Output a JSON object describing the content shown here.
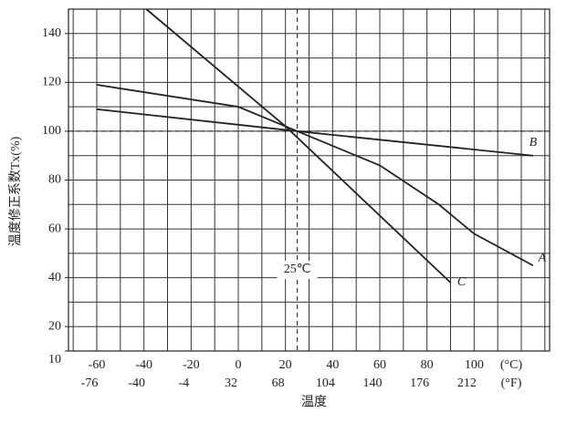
{
  "chart_data": {
    "type": "line",
    "x_label": "温度",
    "y_label": "温度修正系数Tx(%)",
    "annotation": "25℃",
    "reference_lines": {
      "x": 25,
      "y": 100
    },
    "xlim": [
      -72,
      132
    ],
    "ylim": [
      10,
      150
    ],
    "xticks": [
      -60,
      -40,
      -20,
      0,
      20,
      40,
      60,
      80,
      100
    ],
    "xticks_f": [
      -76,
      -40,
      -4,
      32,
      68,
      104,
      140,
      176,
      212
    ],
    "x_units": [
      "(°C)",
      "(°F)"
    ],
    "yticks": [
      10,
      20,
      40,
      60,
      80,
      100,
      120,
      140
    ],
    "xgrid": [
      -70,
      -60,
      -50,
      -40,
      -30,
      -20,
      -10,
      0,
      10,
      20,
      30,
      40,
      50,
      60,
      70,
      80,
      90,
      100,
      110,
      120,
      130
    ],
    "ygrid": [
      20,
      30,
      40,
      50,
      60,
      70,
      80,
      90,
      100,
      110,
      120,
      130,
      140
    ],
    "series": [
      {
        "name": "A",
        "color": "#222222",
        "x": [
          -60,
          0,
          25,
          60,
          85,
          100,
          125
        ],
        "values": [
          119,
          110,
          100,
          86,
          70,
          58,
          45
        ]
      },
      {
        "name": "B",
        "color": "#222222",
        "x": [
          -60,
          25,
          125
        ],
        "values": [
          109,
          100,
          90
        ]
      },
      {
        "name": "C",
        "color": "#222222",
        "x": [
          -39,
          20,
          90
        ],
        "values": [
          150,
          102,
          38
        ]
      }
    ]
  }
}
